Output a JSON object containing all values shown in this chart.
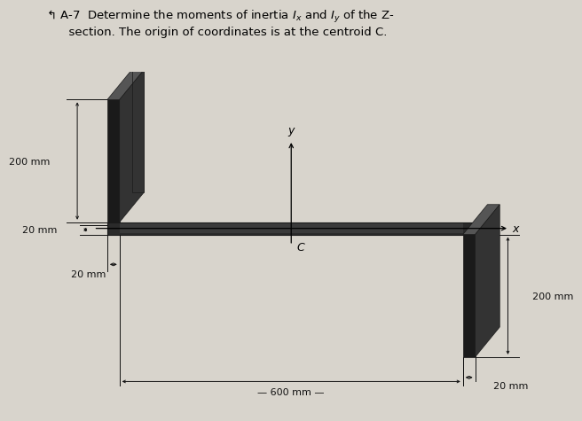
{
  "bg_color": "#d8d4cc",
  "section_dark": "#1a1a1a",
  "section_mid": "#444444",
  "section_light": "#888888",
  "dim_color": "#111111",
  "title_text": "A-7  Determine the moments of inertia $I_x$ and $I_y$ of the Z-\nsection. The origin of coordinates is at the centroid C.",
  "centroid_label": "C",
  "x_axis_label": "x",
  "y_axis_label": "y",
  "dim_200mm_left": "200 mm",
  "dim_20mm_left": "20 mm",
  "dim_20mm_bottom_left": "20 mm",
  "dim_600mm": "600 mm",
  "dim_200mm_right": "200 mm",
  "dim_20mm_bottom_right": "20 mm",
  "figsize": [
    6.4,
    4.8
  ],
  "dpi": 100
}
